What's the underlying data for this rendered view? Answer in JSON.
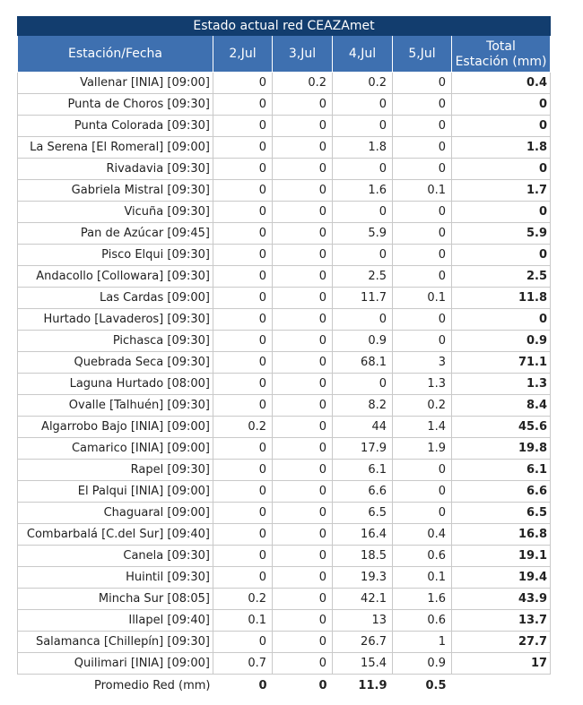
{
  "title": "Estado actual red CEAZAmet",
  "headers": [
    "Estación/Fecha",
    "2,Jul",
    "3,Jul",
    "4,Jul",
    "5,Jul",
    "Total",
    "Estación (mm)"
  ],
  "rows": [
    [
      "Vallenar [INIA] [09:00]",
      "0",
      "0.2",
      "0.2",
      "0",
      "0.4"
    ],
    [
      "Punta de Choros [09:30]",
      "0",
      "0",
      "0",
      "0",
      "0"
    ],
    [
      "Punta Colorada [09:30]",
      "0",
      "0",
      "0",
      "0",
      "0"
    ],
    [
      "La Serena [El Romeral] [09:00]",
      "0",
      "0",
      "1.8",
      "0",
      "1.8"
    ],
    [
      "Rivadavia [09:30]",
      "0",
      "0",
      "0",
      "0",
      "0"
    ],
    [
      "Gabriela Mistral [09:30]",
      "0",
      "0",
      "1.6",
      "0.1",
      "1.7"
    ],
    [
      "Vicuña [09:30]",
      "0",
      "0",
      "0",
      "0",
      "0"
    ],
    [
      "Pan de Azúcar [09:45]",
      "0",
      "0",
      "5.9",
      "0",
      "5.9"
    ],
    [
      "Pisco Elqui [09:30]",
      "0",
      "0",
      "0",
      "0",
      "0"
    ],
    [
      "Andacollo [Collowara] [09:30]",
      "0",
      "0",
      "2.5",
      "0",
      "2.5"
    ],
    [
      "Las Cardas [09:00]",
      "0",
      "0",
      "11.7",
      "0.1",
      "11.8"
    ],
    [
      "Hurtado [Lavaderos] [09:30]",
      "0",
      "0",
      "0",
      "0",
      "0"
    ],
    [
      "Pichasca [09:30]",
      "0",
      "0",
      "0.9",
      "0",
      "0.9"
    ],
    [
      "Quebrada Seca [09:30]",
      "0",
      "0",
      "68.1",
      "3",
      "71.1"
    ],
    [
      "Laguna Hurtado [08:00]",
      "0",
      "0",
      "0",
      "1.3",
      "1.3"
    ],
    [
      "Ovalle [Talhuén] [09:30]",
      "0",
      "0",
      "8.2",
      "0.2",
      "8.4"
    ],
    [
      "Algarrobo Bajo [INIA] [09:00]",
      "0.2",
      "0",
      "44",
      "1.4",
      "45.6"
    ],
    [
      "Camarico [INIA] [09:00]",
      "0",
      "0",
      "17.9",
      "1.9",
      "19.8"
    ],
    [
      "Rapel [09:30]",
      "0",
      "0",
      "6.1",
      "0",
      "6.1"
    ],
    [
      "El Palqui [INIA] [09:00]",
      "0",
      "0",
      "6.6",
      "0",
      "6.6"
    ],
    [
      "Chaguaral [09:00]",
      "0",
      "0",
      "6.5",
      "0",
      "6.5"
    ],
    [
      "Combarbalá [C.del Sur] [09:40]",
      "0",
      "0",
      "16.4",
      "0.4",
      "16.8"
    ],
    [
      "Canela [09:30]",
      "0",
      "0",
      "18.5",
      "0.6",
      "19.1"
    ],
    [
      "Huintil [09:30]",
      "0",
      "0",
      "19.3",
      "0.1",
      "19.4"
    ],
    [
      "Mincha Sur [08:05]",
      "0.2",
      "0",
      "42.1",
      "1.6",
      "43.9"
    ],
    [
      "Illapel [09:40]",
      "0.1",
      "0",
      "13",
      "0.6",
      "13.7"
    ],
    [
      "Salamanca [Chillepín] [09:30]",
      "0",
      "0",
      "26.7",
      "1",
      "27.7"
    ],
    [
      "Quilimari [INIA] [09:00]",
      "0.7",
      "0",
      "15.4",
      "0.9",
      "17"
    ]
  ],
  "average": [
    "Promedio Red (mm)",
    "0",
    "0",
    "11.9",
    "0.5"
  ],
  "colors": {
    "title_bg": "#123d6e",
    "header_bg": "#3e70b0",
    "grid": "#c9c9c9"
  }
}
